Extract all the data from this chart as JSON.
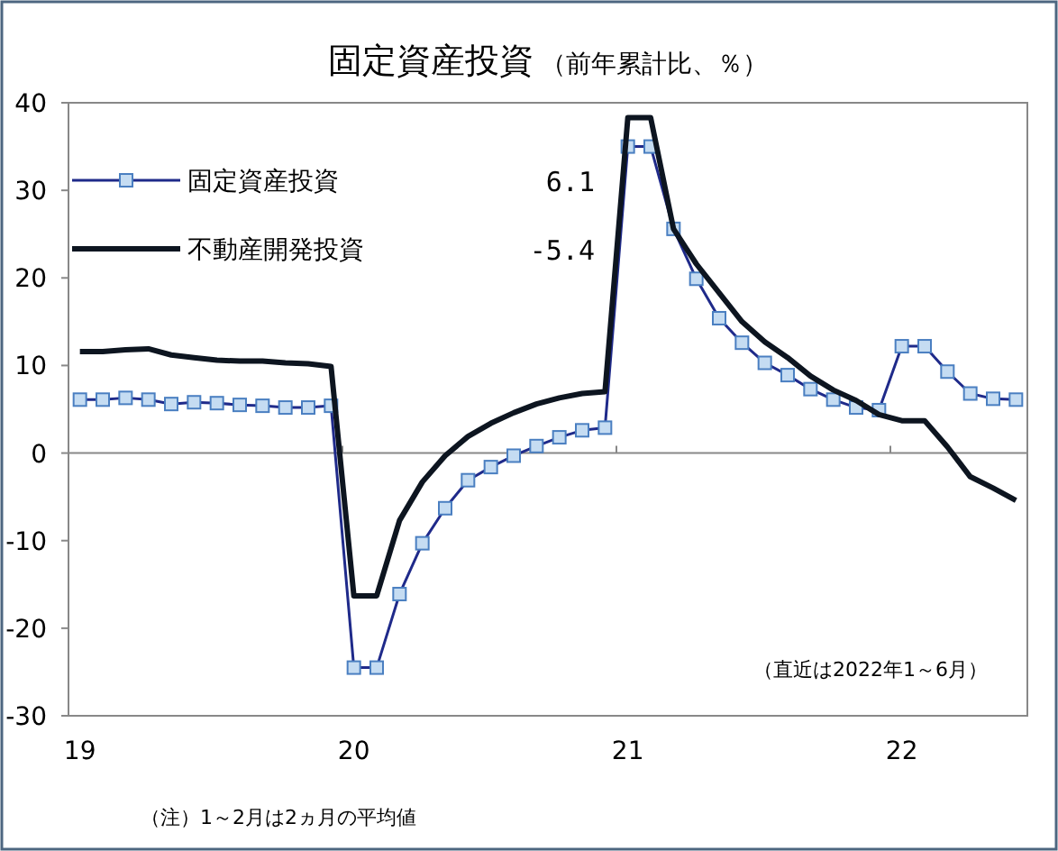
{
  "chart_data": {
    "type": "line",
    "title": "固定資産投資",
    "subtitle": "（前年累計比、％）",
    "categories": [
      "19",
      null,
      null,
      null,
      null,
      null,
      null,
      null,
      null,
      null,
      null,
      null,
      "20",
      null,
      null,
      null,
      null,
      null,
      null,
      null,
      null,
      null,
      null,
      null,
      "21",
      null,
      null,
      null,
      null,
      null,
      null,
      null,
      null,
      null,
      null,
      null,
      "22",
      null,
      null,
      null,
      null,
      null
    ],
    "series": [
      {
        "name": "固定資産投資",
        "color": "#1f2a8a",
        "marker": "square",
        "values": [
          6.1,
          6.1,
          6.3,
          6.1,
          5.6,
          5.8,
          5.7,
          5.5,
          5.4,
          5.2,
          5.2,
          5.4,
          -24.5,
          -24.5,
          -16.1,
          -10.3,
          -6.3,
          -3.1,
          -1.6,
          -0.3,
          0.8,
          1.8,
          2.6,
          2.9,
          35.0,
          35.0,
          25.6,
          19.9,
          15.4,
          12.6,
          10.3,
          8.9,
          7.3,
          6.1,
          5.2,
          4.9,
          12.2,
          12.2,
          9.3,
          6.8,
          6.2,
          6.1
        ]
      },
      {
        "name": "不動産開発投資",
        "color": "#0d1520",
        "marker": "none",
        "values": [
          11.6,
          11.6,
          11.8,
          11.9,
          11.2,
          10.9,
          10.6,
          10.5,
          10.5,
          10.3,
          10.2,
          9.9,
          -16.3,
          -16.3,
          -7.7,
          -3.3,
          -0.3,
          1.9,
          3.4,
          4.6,
          5.6,
          6.3,
          6.8,
          7.0,
          38.3,
          38.3,
          25.6,
          21.6,
          18.3,
          15.0,
          12.7,
          10.9,
          8.8,
          7.2,
          6.0,
          4.4,
          3.7,
          3.7,
          0.7,
          -2.7,
          -4.0,
          -5.4
        ]
      }
    ],
    "ylim": [
      -30,
      40
    ],
    "yticks": [
      -30,
      -20,
      -10,
      0,
      10,
      20,
      30,
      40
    ],
    "ref_lines": [
      {
        "axis": "y",
        "value": 0,
        "color": "#888888"
      }
    ],
    "legend": "top left",
    "annotations": [
      "6.1",
      "-5.4",
      "（直近は2022年1～6月）",
      "（注）1～2月は2ヵ月の平均値"
    ]
  }
}
